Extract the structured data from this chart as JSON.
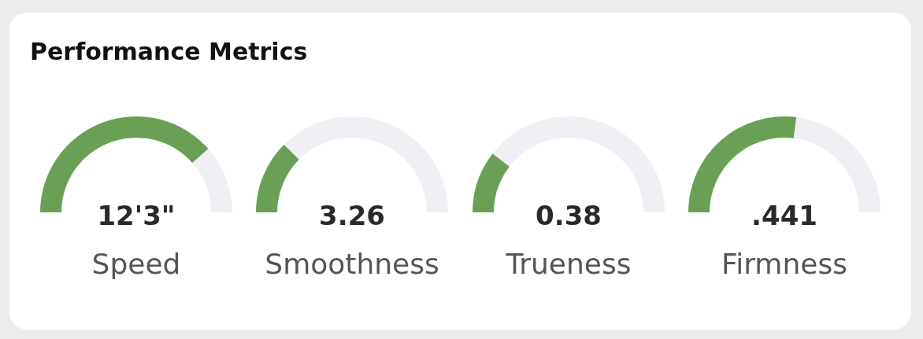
{
  "chart_data": [
    {
      "type": "other",
      "title": "Performance Metrics"
    },
    {
      "type": "donut",
      "title": "Speed",
      "annotations": [
        "12'3\""
      ],
      "categories": [
        null,
        null
      ],
      "values": [
        77,
        23
      ],
      "colors": [
        "#69a055",
        "#efeff4"
      ]
    },
    {
      "type": "donut",
      "title": "Smoothness",
      "annotations": [
        "3.26"
      ],
      "categories": [
        null,
        null
      ],
      "values": [
        25,
        75
      ],
      "colors": [
        "#69a055",
        "#efeff4"
      ]
    },
    {
      "type": "donut",
      "title": "Trueness",
      "annotations": [
        "0.38"
      ],
      "categories": [
        null,
        null
      ],
      "values": [
        21,
        79
      ],
      "colors": [
        "#69a055",
        "#efeff4"
      ]
    },
    {
      "type": "donut",
      "title": "Firmness",
      "annotations": [
        ".441"
      ],
      "categories": [
        null,
        null
      ],
      "values": [
        54,
        46
      ],
      "colors": [
        "#69a055",
        "#efeff4"
      ]
    }
  ]
}
